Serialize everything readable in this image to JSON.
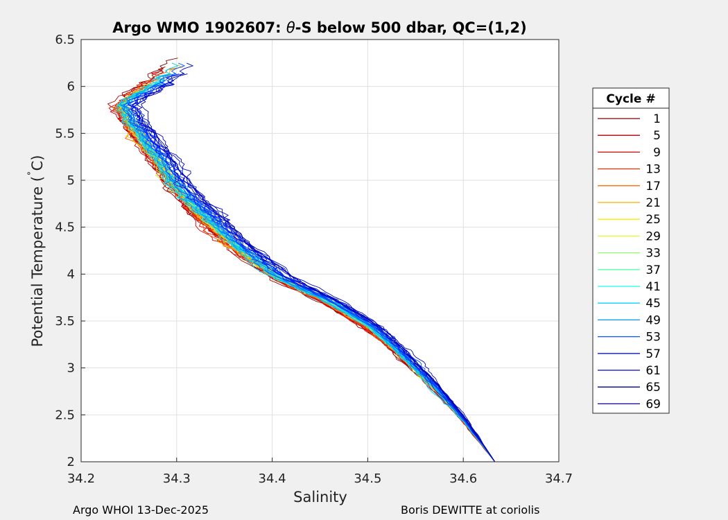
{
  "chart_data": {
    "type": "line",
    "title_prefix": "Argo WMO 1902607: ",
    "title_theta": "θ",
    "title_suffix": "-S below 500 dbar,  QC=(1,2)",
    "xlabel": "Salinity",
    "ylabel_main": "Potential Temperature (",
    "ylabel_degree": "˚",
    "ylabel_unit": "C)",
    "xlim": [
      34.2,
      34.7
    ],
    "ylim": [
      2,
      6.5
    ],
    "xticks": [
      34.2,
      34.3,
      34.4,
      34.5,
      34.6,
      34.7
    ],
    "xtick_labels": [
      "34.2",
      "34.3",
      "34.4",
      "34.5",
      "34.6",
      "34.7"
    ],
    "yticks": [
      2,
      2.5,
      3,
      3.5,
      4,
      4.5,
      5,
      5.5,
      6,
      6.5
    ],
    "ytick_labels": [
      "2",
      "2.5",
      "3",
      "3.5",
      "4",
      "4.5",
      "5",
      "5.5",
      "6",
      "6.5"
    ],
    "grid": true,
    "legend_title": "Cycle #",
    "legend_position": "outside-right",
    "legend": [
      {
        "label": "1",
        "color": "#7f0000"
      },
      {
        "label": "5",
        "color": "#b00000"
      },
      {
        "label": "9",
        "color": "#e00000"
      },
      {
        "label": "13",
        "color": "#ff2a00"
      },
      {
        "label": "17",
        "color": "#ff6a00"
      },
      {
        "label": "21",
        "color": "#ffaa00"
      },
      {
        "label": "25",
        "color": "#ffea00"
      },
      {
        "label": "29",
        "color": "#d4ff2a"
      },
      {
        "label": "33",
        "color": "#95ff6a"
      },
      {
        "label": "37",
        "color": "#55ffaa"
      },
      {
        "label": "41",
        "color": "#15ffea"
      },
      {
        "label": "45",
        "color": "#00d4ff"
      },
      {
        "label": "49",
        "color": "#0095ff"
      },
      {
        "label": "53",
        "color": "#0055ff"
      },
      {
        "label": "57",
        "color": "#0015ff"
      },
      {
        "label": "61",
        "color": "#0000c0"
      },
      {
        "label": "65",
        "color": "#000090"
      },
      {
        "label": "69",
        "color": "#0000d0"
      }
    ],
    "profile_count": 70,
    "mean_profile": {
      "s": [
        34.245,
        34.255,
        34.268,
        34.285,
        34.3,
        34.32,
        34.345,
        34.375,
        34.41,
        34.46,
        34.5,
        34.53,
        34.56,
        34.6,
        34.633
      ],
      "t": [
        5.8,
        5.6,
        5.4,
        5.15,
        4.95,
        4.7,
        4.45,
        4.2,
        3.95,
        3.7,
        3.45,
        3.2,
        2.9,
        2.45,
        2.0
      ]
    }
  },
  "footer": {
    "left": "Argo WHOI 13-Dec-2025",
    "right": "Boris DEWITTE at coriolis"
  }
}
